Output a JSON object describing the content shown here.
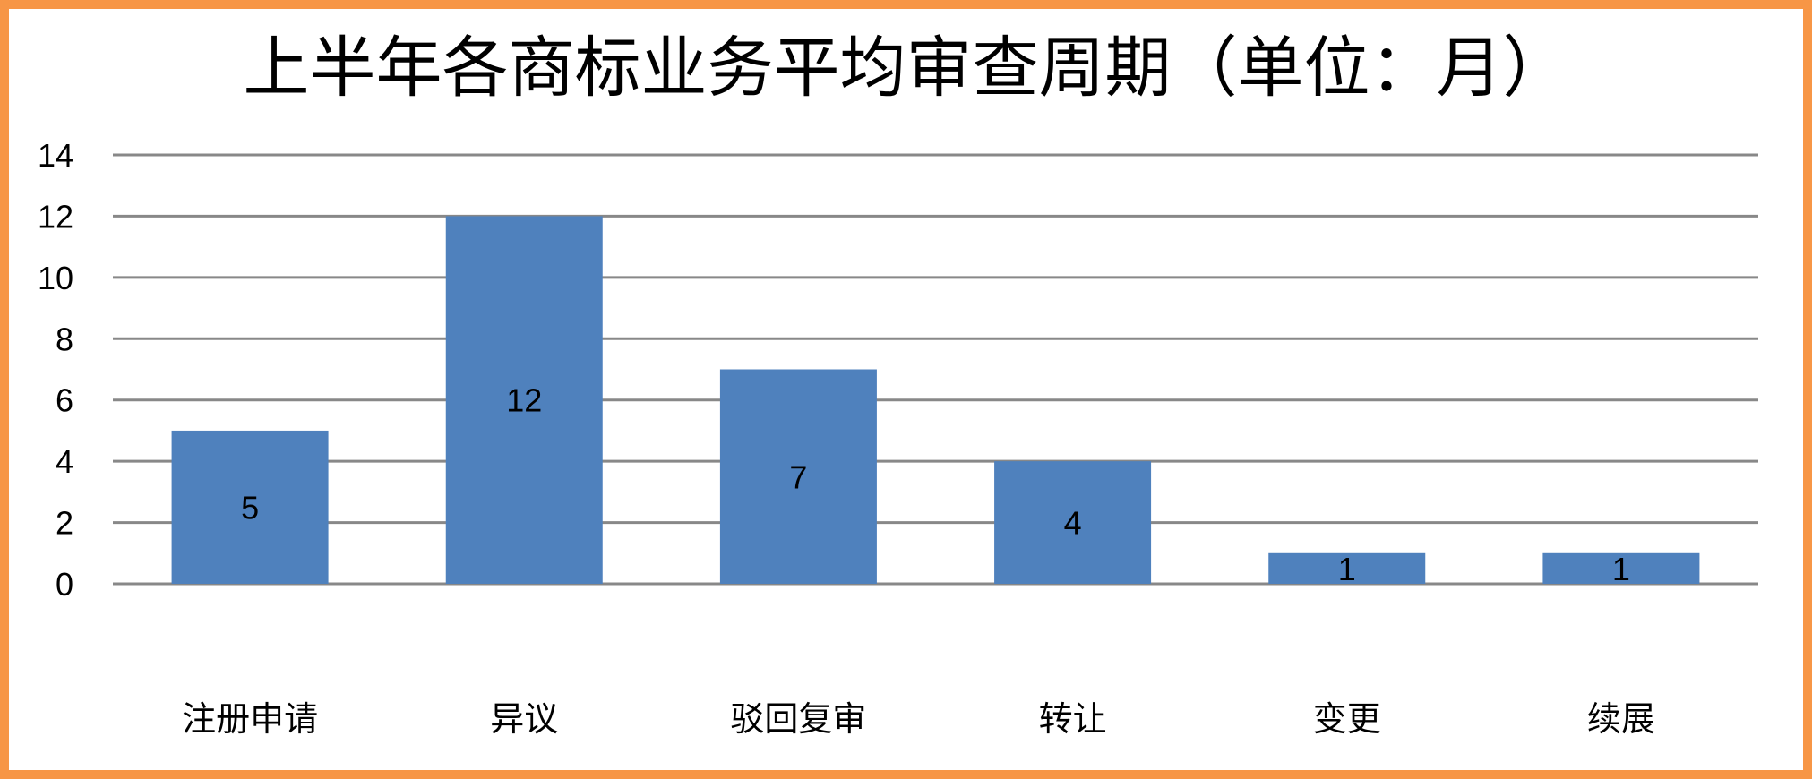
{
  "chart_data": {
    "type": "bar",
    "title": "上半年各商标业务平均审查周期（单位：月）",
    "categories": [
      "注册申请",
      "异议",
      "驳回复审",
      "转让",
      "变更",
      "续展"
    ],
    "values": [
      5,
      12,
      7,
      4,
      1,
      1
    ],
    "data_labels": [
      "5",
      "12",
      "7",
      "4",
      "1",
      "1"
    ],
    "xlabel": "",
    "ylabel": "",
    "ylim": [
      0,
      14
    ],
    "yticks": [
      "0",
      "2",
      "4",
      "6",
      "8",
      "10",
      "12",
      "14"
    ],
    "grid": true,
    "legend": "none",
    "colors": {
      "bar": "#4F81BD",
      "grid": "#888888",
      "border": "#F79646"
    }
  }
}
